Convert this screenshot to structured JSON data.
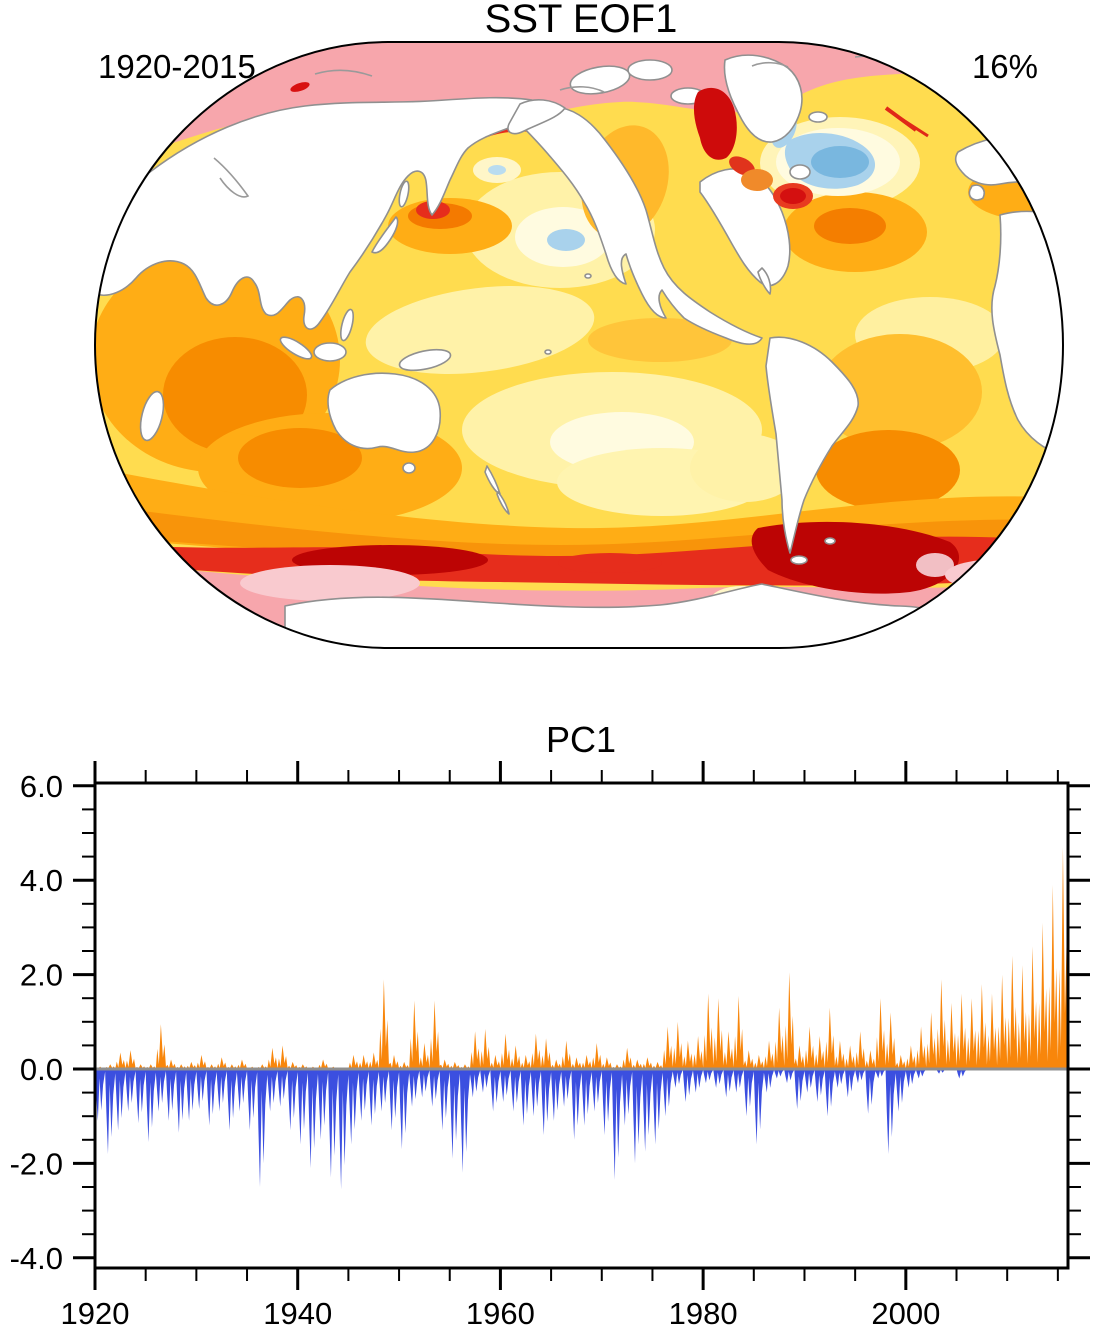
{
  "figure": {
    "background": "#FFFFFF"
  },
  "map": {
    "title": "SST EOF1",
    "period": "1920-2015",
    "variance": "16%",
    "projection": "winkel-tripel-global",
    "palette": {
      "ocean_base_yellow": "#FFDC4F",
      "pale_yellow": "#FFF2A8",
      "cream": "#FFFBE0",
      "orange": "#FFAD15",
      "dark_orange": "#F47E00",
      "red": "#E62D1C",
      "dark_red": "#BC0404",
      "arctic_pink": "#F7A6AC",
      "pale_pink": "#F9CACF",
      "light_blue": "#A9D2EC",
      "mid_blue": "#79B7DF",
      "land_fill": "#FFFFFF",
      "coast_gray": "#909090"
    },
    "features": [
      {
        "name": "arctic-ocean-band",
        "color": "#F7A6AC"
      },
      {
        "name": "antarctic-coastal-band",
        "color": "#F7A6AC"
      },
      {
        "name": "southern-ocean-red-belt",
        "color": "#E62D1C"
      },
      {
        "name": "weddell-scotia-dark-red",
        "color": "#BC0404"
      },
      {
        "name": "north-atlantic-warming-hole",
        "color": "#79B7DF"
      },
      {
        "name": "north-pacific-cool-spot",
        "color": "#A9D2EC"
      },
      {
        "name": "kuroshio-red-spot",
        "color": "#E62D1C"
      },
      {
        "name": "bering-coast-red",
        "color": "#E62D1C"
      },
      {
        "name": "baffin-hudson-red",
        "color": "#CE0B0B"
      },
      {
        "name": "gulf-of-maine-red",
        "color": "#D41010"
      },
      {
        "name": "indian-ocean-orange",
        "color": "#FFAD15"
      }
    ]
  },
  "chart_data": {
    "type": "area",
    "title": "PC1",
    "xlabel": "",
    "ylabel": "",
    "xlim": [
      1920,
      2016
    ],
    "ylim": [
      -4.2,
      6.05
    ],
    "x_label_ticks": [
      1920,
      1940,
      1960,
      1980,
      2000
    ],
    "x_minor_step": 5,
    "y_ticks": [
      -4,
      -2,
      0,
      2,
      4,
      6
    ],
    "y_tick_labels": [
      "-4.0",
      "-2.0",
      "0.0",
      "2.0",
      "4.0",
      "6.0"
    ],
    "y_minor_step": 0.5,
    "grid": false,
    "legend": "none",
    "positive_color": "#F8860B",
    "negative_color": "#3B4FE0",
    "zero_line_color": "#8F8F8F",
    "year_start": 1920,
    "year_end": 2015,
    "annual_max": [
      0.05,
      0.1,
      0.35,
      0.4,
      0.1,
      0.1,
      0.95,
      0.2,
      0.1,
      0.15,
      0.3,
      0.1,
      0.25,
      0.1,
      0.2,
      0.05,
      0.1,
      0.45,
      0.5,
      0.15,
      0.1,
      0.05,
      0.2,
      0.05,
      0.0,
      0.3,
      0.3,
      0.35,
      1.9,
      0.3,
      0.15,
      1.45,
      0.55,
      1.45,
      0.2,
      0.15,
      0.1,
      0.8,
      0.85,
      0.3,
      0.75,
      0.5,
      0.3,
      0.75,
      0.65,
      0.2,
      0.6,
      0.25,
      0.3,
      0.55,
      0.25,
      0.1,
      0.45,
      0.2,
      0.25,
      0.15,
      0.9,
      1.0,
      0.6,
      0.7,
      1.6,
      1.5,
      0.8,
      1.55,
      0.4,
      0.3,
      0.6,
      1.3,
      2.05,
      0.5,
      0.9,
      0.7,
      1.3,
      0.6,
      0.5,
      0.8,
      0.4,
      1.5,
      1.2,
      0.3,
      0.5,
      0.9,
      1.2,
      1.9,
      1.4,
      1.6,
      1.5,
      1.8,
      1.6,
      2.0,
      2.4,
      2.2,
      2.6,
      3.1,
      3.9,
      4.7
    ],
    "annual_min": [
      -1.1,
      -1.8,
      -1.3,
      -0.9,
      -1.15,
      -1.55,
      -0.9,
      -1.1,
      -1.35,
      -1.1,
      -0.85,
      -1.2,
      -0.9,
      -1.3,
      -0.9,
      -1.3,
      -2.5,
      -0.9,
      -0.8,
      -1.3,
      -1.6,
      -2.1,
      -1.5,
      -2.3,
      -2.55,
      -1.6,
      -1.1,
      -1.2,
      -0.9,
      -1.3,
      -1.7,
      -0.8,
      -0.6,
      -0.8,
      -1.3,
      -1.9,
      -2.2,
      -0.6,
      -0.5,
      -0.9,
      -0.7,
      -0.9,
      -1.2,
      -1.0,
      -1.4,
      -1.1,
      -0.8,
      -1.5,
      -1.2,
      -0.9,
      -1.4,
      -2.35,
      -1.2,
      -2.0,
      -1.75,
      -1.6,
      -1.0,
      -0.4,
      -0.7,
      -0.5,
      -0.3,
      -0.4,
      -0.6,
      -0.5,
      -1.0,
      -1.6,
      -0.5,
      -0.2,
      -0.3,
      -0.85,
      -0.5,
      -0.7,
      -1.0,
      -0.4,
      -0.6,
      -0.3,
      -0.95,
      -0.2,
      -1.8,
      -0.9,
      -0.4,
      -0.2,
      0.0,
      -0.1,
      0.1,
      -0.2,
      0.3,
      0.2,
      0.3,
      0.4,
      0.3,
      0.5,
      0.6,
      0.7,
      0.9,
      1.2
    ]
  }
}
